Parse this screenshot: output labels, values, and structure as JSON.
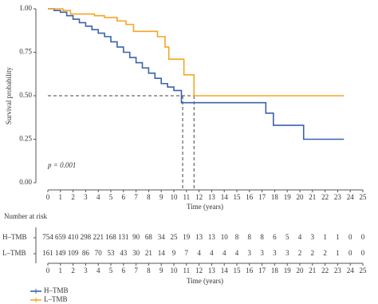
{
  "chart_data": {
    "type": "step",
    "y_label": "Survival probability",
    "x_label": "Time (years)",
    "annotation": "p = 0.001",
    "xlim": [
      0,
      25
    ],
    "xticks": [
      0,
      1,
      2,
      3,
      4,
      5,
      6,
      7,
      8,
      9,
      10,
      11,
      12,
      13,
      14,
      15,
      16,
      17,
      18,
      19,
      20,
      21,
      22,
      23,
      24,
      25
    ],
    "ylim": [
      0,
      1
    ],
    "yticks": [
      {
        "value": 0,
        "label": "0.00"
      },
      {
        "value": 0.25,
        "label": "0.25"
      },
      {
        "value": 0.5,
        "label": "0.50"
      },
      {
        "value": 0.75,
        "label": "0.75"
      },
      {
        "value": 1,
        "label": "1.00"
      }
    ],
    "reference_lines": {
      "y": 0.5,
      "x": [
        10.7,
        11.6
      ]
    },
    "series": [
      {
        "name": "H–TMB",
        "color": "#3a62ab",
        "x": [
          0,
          0.5,
          1,
          1.5,
          2,
          2.5,
          3,
          3.5,
          4,
          4.5,
          5,
          5.5,
          6,
          6.5,
          7,
          7.5,
          8,
          8.5,
          9,
          9.5,
          10,
          10.6,
          17.3,
          17.9,
          20.3,
          23.5
        ],
        "values": [
          1.0,
          0.99,
          0.98,
          0.96,
          0.94,
          0.92,
          0.9,
          0.88,
          0.86,
          0.84,
          0.81,
          0.78,
          0.75,
          0.72,
          0.69,
          0.66,
          0.63,
          0.6,
          0.57,
          0.55,
          0.53,
          0.46,
          0.4,
          0.33,
          0.25,
          0.25
        ]
      },
      {
        "name": "L–TMB",
        "color": "#f5a623",
        "x": [
          0,
          1.2,
          1.8,
          3.7,
          4.5,
          5.5,
          6.2,
          6.8,
          8.7,
          9.3,
          9.6,
          10.8,
          11.6,
          23.5
        ],
        "values": [
          1.0,
          0.99,
          0.97,
          0.96,
          0.95,
          0.93,
          0.91,
          0.87,
          0.84,
          0.78,
          0.71,
          0.62,
          0.5,
          0.5
        ]
      }
    ]
  },
  "risk_table": {
    "title": "Number at risk",
    "x_label": "Time (years)",
    "rows": [
      [
        754,
        659,
        410,
        298,
        221,
        168,
        131,
        90,
        68,
        34,
        25,
        19,
        13,
        13,
        10,
        8,
        8,
        8,
        6,
        5,
        4,
        3,
        1,
        1,
        0,
        0
      ],
      [
        161,
        149,
        109,
        86,
        70,
        53,
        43,
        30,
        21,
        14,
        9,
        7,
        4,
        4,
        4,
        4,
        3,
        3,
        3,
        3,
        2,
        2,
        2,
        1,
        0,
        0
      ]
    ]
  }
}
